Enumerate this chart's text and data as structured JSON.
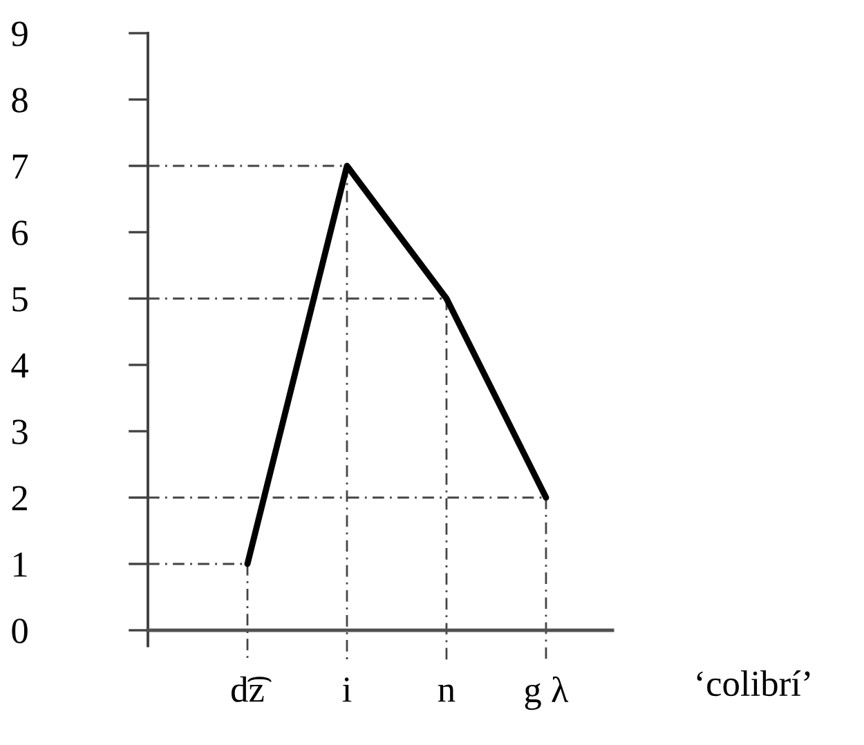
{
  "chart_data": {
    "type": "line",
    "categories": [
      "d͡z",
      "i",
      "n",
      "g λ"
    ],
    "values": [
      1,
      7,
      5,
      2
    ],
    "color": "#000000",
    "line_style": "solid",
    "ylim": [
      0,
      9
    ],
    "yticks": [
      0,
      1,
      2,
      3,
      4,
      5,
      6,
      7,
      8,
      9
    ],
    "ref_lines": [
      {
        "axis": "y",
        "value": 1,
        "color": "#444444"
      },
      {
        "axis": "y",
        "value": 7,
        "color": "#444444"
      },
      {
        "axis": "y",
        "value": 5,
        "color": "#444444"
      },
      {
        "axis": "y",
        "value": 2,
        "color": "#444444"
      },
      {
        "axis": "x",
        "value": "d͡z",
        "color": "#444444"
      },
      {
        "axis": "x",
        "value": "i",
        "color": "#444444"
      },
      {
        "axis": "x",
        "value": "n",
        "color": "#444444"
      },
      {
        "axis": "x",
        "value": "g λ",
        "color": "#444444"
      }
    ],
    "annotations": [
      "‘colibrí’"
    ]
  }
}
